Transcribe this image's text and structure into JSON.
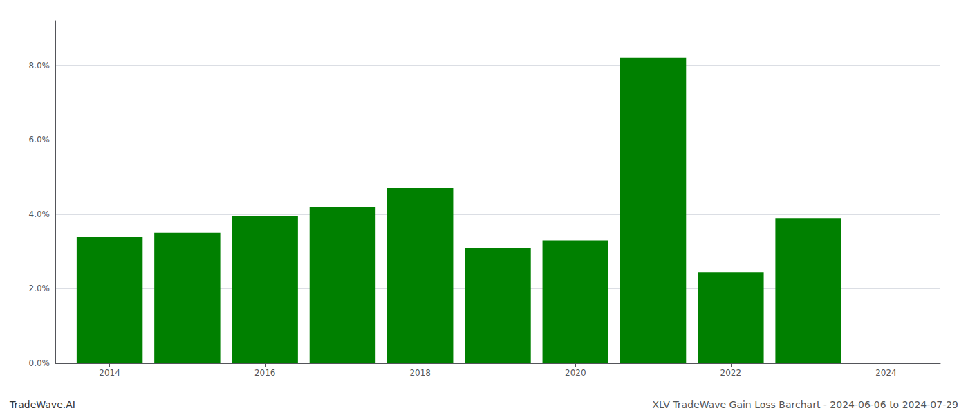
{
  "chart_data": {
    "type": "bar",
    "x": [
      2014,
      2015,
      2016,
      2017,
      2018,
      2019,
      2020,
      2021,
      2022,
      2023
    ],
    "values": [
      0.034,
      0.035,
      0.0395,
      0.042,
      0.047,
      0.031,
      0.033,
      0.082,
      0.0245,
      0.039
    ],
    "color": "#008000",
    "xlim": [
      2013.3,
      2024.7
    ],
    "xticks": [
      2014,
      2016,
      2018,
      2020,
      2022,
      2024
    ],
    "ylim": [
      0,
      0.092
    ],
    "yticks": [
      {
        "value": 0.0,
        "label": "0.0%"
      },
      {
        "value": 0.02,
        "label": "2.0%"
      },
      {
        "value": 0.04,
        "label": "4.0%"
      },
      {
        "value": 0.06,
        "label": "6.0%"
      },
      {
        "value": 0.08,
        "label": "8.0%"
      }
    ],
    "grid": true,
    "annotations": [
      "TradeWave.AI",
      "XLV TradeWave Gain Loss Barchart - 2024-06-06 to 2024-07-29"
    ]
  }
}
